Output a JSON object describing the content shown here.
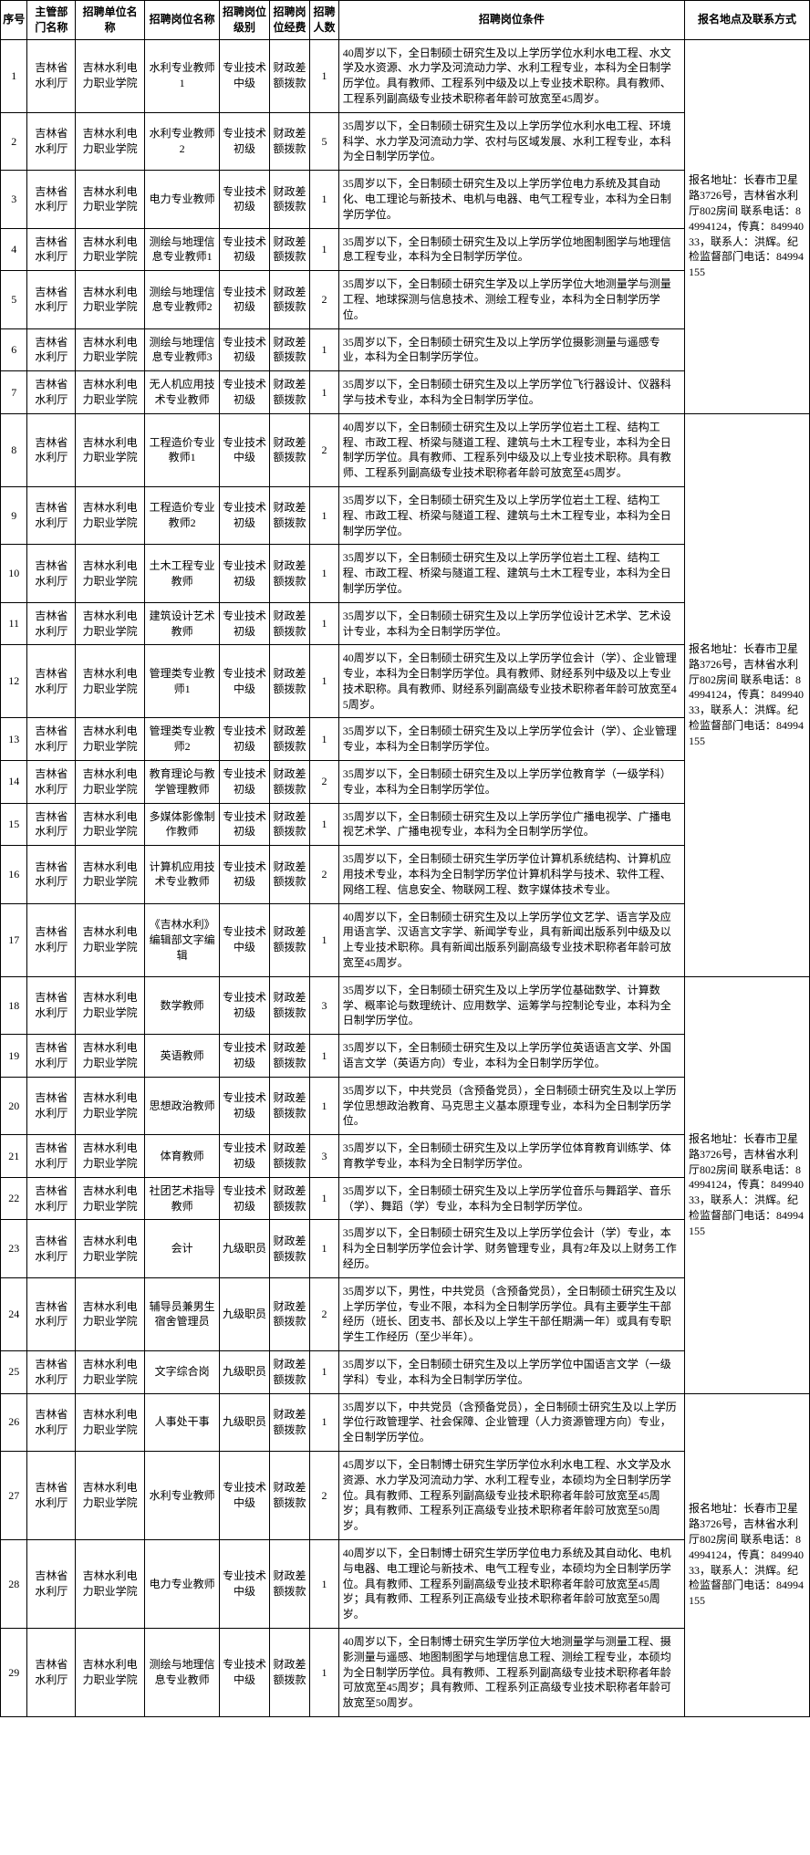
{
  "headers": {
    "seq": "序号",
    "dept": "主管部门名称",
    "unit": "招聘单位名称",
    "position": "招聘岗位名称",
    "level": "招聘岗位级别",
    "funding": "招聘岗位经费",
    "number": "招聘人数",
    "conditions": "招聘岗位条件",
    "contact": "报名地点及联系方式"
  },
  "common": {
    "dept": "吉林省水利厅",
    "unit": "吉林水利电力职业学院",
    "funding": "财政差额拨款",
    "level_mid": "专业技术中级",
    "level_junior": "专业技术初级",
    "level_staff": "九级职员"
  },
  "contact_text": "报名地址：长春市卫星路3726号，吉林省水利厅802房间\n联系电话：84994124，传真：84994033，联系人：洪辉。纪检监督部门电话：84994155",
  "rows": [
    {
      "seq": "1",
      "pos": "水利专业教师1",
      "level": "专业技术中级",
      "num": "1",
      "cond": "40周岁以下，全日制硕士研究生及以上学历学位水利水电工程、水文学及水资源、水力学及河流动力学、水利工程专业，本科为全日制学历学位。具有教师、工程系列中级及以上专业技术职称。具有教师、工程系列副高级专业技术职称者年龄可放宽至45周岁。"
    },
    {
      "seq": "2",
      "pos": "水利专业教师2",
      "level": "专业技术初级",
      "num": "5",
      "cond": "35周岁以下，全日制硕士研究生及以上学历学位水利水电工程、环境科学、水力学及河流动力学、农村与区域发展、水利工程专业，本科为全日制学历学位。"
    },
    {
      "seq": "3",
      "pos": "电力专业教师",
      "level": "专业技术初级",
      "num": "1",
      "cond": "35周岁以下，全日制硕士研究生及以上学历学位电力系统及其自动化、电工理论与新技术、电机与电器、电气工程专业，本科为全日制学历学位。"
    },
    {
      "seq": "4",
      "pos": "测绘与地理信息专业教师1",
      "level": "专业技术初级",
      "num": "1",
      "cond": "35周岁以下，全日制硕士研究生及以上学历学位地图制图学与地理信息工程专业，本科为全日制学历学位。"
    },
    {
      "seq": "5",
      "pos": "测绘与地理信息专业教师2",
      "level": "专业技术初级",
      "num": "2",
      "cond": "35周岁以下，全日制硕士研究生学及以上学历学位大地测量学与测量工程、地球探测与信息技术、测绘工程专业，本科为全日制学历学位。"
    },
    {
      "seq": "6",
      "pos": "测绘与地理信息专业教师3",
      "level": "专业技术初级",
      "num": "1",
      "cond": "35周岁以下，全日制硕士研究生及以上学历学位摄影测量与遥感专业，本科为全日制学历学位。"
    },
    {
      "seq": "7",
      "pos": "无人机应用技术专业教师",
      "level": "专业技术初级",
      "num": "1",
      "cond": "35周岁以下，全日制硕士研究生及以上学历学位飞行器设计、仪器科学与技术专业，本科为全日制学历学位。"
    },
    {
      "seq": "8",
      "pos": "工程造价专业教师1",
      "level": "专业技术中级",
      "num": "2",
      "cond": "40周岁以下，全日制硕士研究生及以上学历学位岩土工程、结构工程、市政工程、桥梁与隧道工程、建筑与土木工程专业，本科为全日制学历学位。具有教师、工程系列中级及以上专业技术职称。具有教师、工程系列副高级专业技术职称者年龄可放宽至45周岁。"
    },
    {
      "seq": "9",
      "pos": "工程造价专业教师2",
      "level": "专业技术初级",
      "num": "1",
      "cond": "35周岁以下，全日制硕士研究生及以上学历学位岩土工程、结构工程、市政工程、桥梁与隧道工程、建筑与土木工程专业，本科为全日制学历学位。"
    },
    {
      "seq": "10",
      "pos": "土木工程专业教师",
      "level": "专业技术初级",
      "num": "1",
      "cond": "35周岁以下，全日制硕士研究生及以上学历学位岩土工程、结构工程、市政工程、桥梁与隧道工程、建筑与土木工程专业，本科为全日制学历学位。"
    },
    {
      "seq": "11",
      "pos": "建筑设计艺术教师",
      "level": "专业技术初级",
      "num": "1",
      "cond": "35周岁以下，全日制硕士研究生及以上学历学位设计艺术学、艺术设计专业，本科为全日制学历学位。"
    },
    {
      "seq": "12",
      "pos": "管理类专业教师1",
      "level": "专业技术中级",
      "num": "1",
      "cond": "40周岁以下，全日制硕士研究生及以上学历学位会计（学）、企业管理专业，本科为全日制学历学位。具有教师、财经系列中级及以上专业技术职称。具有教师、财经系列副高级专业技术职称者年龄可放宽至45周岁。"
    },
    {
      "seq": "13",
      "pos": "管理类专业教师2",
      "level": "专业技术初级",
      "num": "1",
      "cond": "35周岁以下，全日制硕士研究生及以上学历学位会计（学）、企业管理专业，本科为全日制学历学位。"
    },
    {
      "seq": "14",
      "pos": "教育理论与教学管理教师",
      "level": "专业技术初级",
      "num": "2",
      "cond": "35周岁以下，全日制硕士研究生及以上学历学位教育学（一级学科）专业，本科为全日制学历学位。"
    },
    {
      "seq": "15",
      "pos": "多媒体影像制作教师",
      "level": "专业技术初级",
      "num": "1",
      "cond": "35周岁以下，全日制硕士研究生及以上学历学位广播电视学、广播电视艺术学、广播电视专业，本科为全日制学历学位。"
    },
    {
      "seq": "16",
      "pos": "计算机应用技术专业教师",
      "level": "专业技术初级",
      "num": "2",
      "cond": "35周岁以下，全日制硕士研究生学历学位计算机系统结构、计算机应用技术专业，本科为全日制学历学位计算机科学与技术、软件工程、网络工程、信息安全、物联网工程、数字媒体技术专业。"
    },
    {
      "seq": "17",
      "pos": "《吉林水利》编辑部文字编辑",
      "level": "专业技术中级",
      "num": "1",
      "cond": "40周岁以下，全日制硕士研究生及以上学历学位文艺学、语言学及应用语言学、汉语言文字学、新闻学专业，具有新闻出版系列中级及以上专业技术职称。具有新闻出版系列副高级专业技术职称者年龄可放宽至45周岁。"
    },
    {
      "seq": "18",
      "pos": "数学教师",
      "level": "专业技术初级",
      "num": "3",
      "cond": "35周岁以下，全日制硕士研究生及以上学历学位基础数学、计算数学、概率论与数理统计、应用数学、运筹学与控制论专业，本科为全日制学历学位。"
    },
    {
      "seq": "19",
      "pos": "英语教师",
      "level": "专业技术初级",
      "num": "1",
      "cond": "35周岁以下，全日制硕士研究生及以上学历学位英语语言文学、外国语言文学（英语方向）专业，本科为全日制学历学位。"
    },
    {
      "seq": "20",
      "pos": "思想政治教师",
      "level": "专业技术初级",
      "num": "1",
      "cond": "35周岁以下，中共党员（含预备党员），全日制硕士研究生及以上学历学位思想政治教育、马克思主义基本原理专业，本科为全日制学历学位。"
    },
    {
      "seq": "21",
      "pos": "体育教师",
      "level": "专业技术初级",
      "num": "3",
      "cond": "35周岁以下，全日制硕士研究生及以上学历学位体育教育训练学、体育教学专业，本科为全日制学历学位。"
    },
    {
      "seq": "22",
      "pos": "社团艺术指导教师",
      "level": "专业技术初级",
      "num": "1",
      "cond": "35周岁以下，全日制硕士研究生及以上学历学位音乐与舞蹈学、音乐（学）、舞蹈（学）专业，本科为全日制学历学位。"
    },
    {
      "seq": "23",
      "pos": "会计",
      "level": "九级职员",
      "num": "1",
      "cond": "35周岁以下，全日制硕士研究生及以上学历学位会计（学）专业，本科为全日制学历学位会计学、财务管理专业，具有2年及以上财务工作经历。"
    },
    {
      "seq": "24",
      "pos": "辅导员兼男生宿舍管理员",
      "level": "九级职员",
      "num": "2",
      "cond": "35周岁以下，男性，中共党员（含预备党员），全日制硕士研究生及以上学历学位，专业不限，本科为全日制学历学位。具有主要学生干部经历（班长、团支书、部长及以上学生干部任期满一年）或具有专职学生工作经历（至少半年）。"
    },
    {
      "seq": "25",
      "pos": "文字综合岗",
      "level": "九级职员",
      "num": "1",
      "cond": "35周岁以下，全日制硕士研究生及以上学历学位中国语言文学（一级学科）专业，本科为全日制学历学位。"
    },
    {
      "seq": "26",
      "pos": "人事处干事",
      "level": "九级职员",
      "num": "1",
      "cond": "35周岁以下，中共党员（含预备党员），全日制硕士研究生及以上学历学位行政管理学、社会保障、企业管理（人力资源管理方向）专业，全日制学历学位。"
    },
    {
      "seq": "27",
      "pos": "水利专业教师",
      "level": "专业技术中级",
      "num": "2",
      "cond": "45周岁以下，全日制博士研究生学历学位水利水电工程、水文学及水资源、水力学及河流动力学、水利工程专业，本硕均为全日制学历学位。具有教师、工程系列副高级专业技术职称者年龄可放宽至45周岁；具有教师、工程系列正高级专业技术职称者年龄可放宽至50周岁。"
    },
    {
      "seq": "28",
      "pos": "电力专业教师",
      "level": "专业技术中级",
      "num": "1",
      "cond": "40周岁以下，全日制博士研究生学历学位电力系统及其自动化、电机与电器、电工理论与新技术、电气工程专业，本硕均为全日制学历学位。具有教师、工程系列副高级专业技术职称者年龄可放宽至45周岁；具有教师、工程系列正高级专业技术职称者年龄可放宽至50周岁。"
    },
    {
      "seq": "29",
      "pos": "测绘与地理信息专业教师",
      "level": "专业技术中级",
      "num": "1",
      "cond": "40周岁以下，全日制博士研究生学历学位大地测量学与测量工程、摄影测量与遥感、地图制图学与地理信息工程、测绘工程专业，本硕均为全日制学历学位。具有教师、工程系列副高级专业技术职称者年龄可放宽至45周岁；具有教师、工程系列正高级专业技术职称者年龄可放宽至50周岁。"
    }
  ],
  "contact_groups": [
    {
      "rowspan": 7
    },
    {
      "rowspan": 10
    },
    {
      "rowspan": 8
    },
    {
      "rowspan": 4
    }
  ]
}
